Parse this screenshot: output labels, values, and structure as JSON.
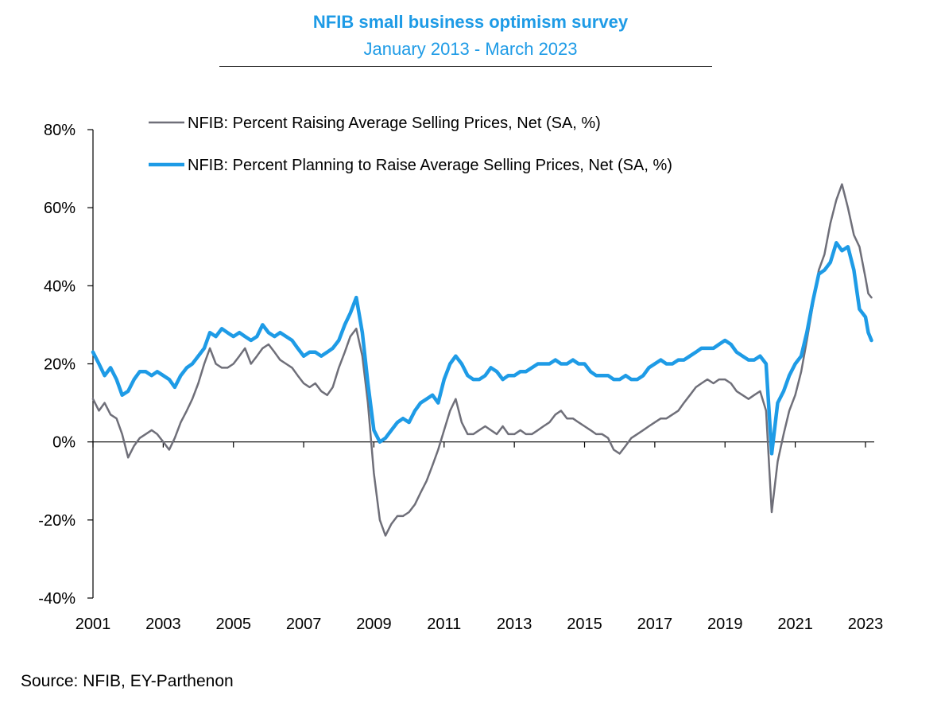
{
  "header": {
    "title": "NFIB small business optimism survey",
    "subtitle": "January 2013 - March 2023"
  },
  "footer": {
    "source": "Source: NFIB, EY-Parthenon"
  },
  "colors": {
    "title": "#1e9be6",
    "series_actual": "#6f6f79",
    "series_planned": "#1e9be6",
    "axis": "#000000"
  },
  "chart_data": {
    "type": "line",
    "title": "NFIB small business optimism survey",
    "subtitle": "January 2013 - March 2023",
    "xlabel": "",
    "ylabel": "",
    "xlim": [
      2001,
      2023.25
    ],
    "ylim": [
      -40,
      80
    ],
    "yticks": [
      -40,
      -20,
      0,
      20,
      40,
      60,
      80
    ],
    "ytick_labels": [
      "-40%",
      "-20%",
      "0%",
      "20%",
      "40%",
      "60%",
      "80%"
    ],
    "xticks": [
      2001,
      2003,
      2005,
      2007,
      2009,
      2011,
      2013,
      2015,
      2017,
      2019,
      2021,
      2023
    ],
    "xtick_labels": [
      "2001",
      "2003",
      "2005",
      "2007",
      "2009",
      "2011",
      "2013",
      "2015",
      "2017",
      "2019",
      "2021",
      "2023"
    ],
    "grid": false,
    "legend": "top-left",
    "series": [
      {
        "name": "NFIB: Percent Raising Average Selling Prices, Net (SA, %)",
        "color": "#6f6f79",
        "points": [
          [
            2001.0,
            11
          ],
          [
            2001.17,
            8
          ],
          [
            2001.33,
            10
          ],
          [
            2001.5,
            7
          ],
          [
            2001.67,
            6
          ],
          [
            2001.83,
            2
          ],
          [
            2002.0,
            -4
          ],
          [
            2002.17,
            -1
          ],
          [
            2002.33,
            1
          ],
          [
            2002.5,
            2
          ],
          [
            2002.67,
            3
          ],
          [
            2002.83,
            2
          ],
          [
            2003.0,
            0
          ],
          [
            2003.17,
            -2
          ],
          [
            2003.33,
            1
          ],
          [
            2003.5,
            5
          ],
          [
            2003.67,
            8
          ],
          [
            2003.83,
            11
          ],
          [
            2004.0,
            15
          ],
          [
            2004.17,
            20
          ],
          [
            2004.33,
            24
          ],
          [
            2004.5,
            20
          ],
          [
            2004.67,
            19
          ],
          [
            2004.83,
            19
          ],
          [
            2005.0,
            20
          ],
          [
            2005.17,
            22
          ],
          [
            2005.33,
            24
          ],
          [
            2005.5,
            20
          ],
          [
            2005.67,
            22
          ],
          [
            2005.83,
            24
          ],
          [
            2006.0,
            25
          ],
          [
            2006.17,
            23
          ],
          [
            2006.33,
            21
          ],
          [
            2006.5,
            20
          ],
          [
            2006.67,
            19
          ],
          [
            2006.83,
            17
          ],
          [
            2007.0,
            15
          ],
          [
            2007.17,
            14
          ],
          [
            2007.33,
            15
          ],
          [
            2007.5,
            13
          ],
          [
            2007.67,
            12
          ],
          [
            2007.83,
            14
          ],
          [
            2008.0,
            19
          ],
          [
            2008.17,
            23
          ],
          [
            2008.33,
            27
          ],
          [
            2008.5,
            29
          ],
          [
            2008.67,
            22
          ],
          [
            2008.83,
            10
          ],
          [
            2009.0,
            -8
          ],
          [
            2009.17,
            -20
          ],
          [
            2009.33,
            -24
          ],
          [
            2009.5,
            -21
          ],
          [
            2009.67,
            -19
          ],
          [
            2009.83,
            -19
          ],
          [
            2010.0,
            -18
          ],
          [
            2010.17,
            -16
          ],
          [
            2010.33,
            -13
          ],
          [
            2010.5,
            -10
          ],
          [
            2010.67,
            -6
          ],
          [
            2010.83,
            -2
          ],
          [
            2011.0,
            3
          ],
          [
            2011.17,
            8
          ],
          [
            2011.33,
            11
          ],
          [
            2011.5,
            5
          ],
          [
            2011.67,
            2
          ],
          [
            2011.83,
            2
          ],
          [
            2012.0,
            3
          ],
          [
            2012.17,
            4
          ],
          [
            2012.33,
            3
          ],
          [
            2012.5,
            2
          ],
          [
            2012.67,
            4
          ],
          [
            2012.83,
            2
          ],
          [
            2013.0,
            2
          ],
          [
            2013.17,
            3
          ],
          [
            2013.33,
            2
          ],
          [
            2013.5,
            2
          ],
          [
            2013.67,
            3
          ],
          [
            2013.83,
            4
          ],
          [
            2014.0,
            5
          ],
          [
            2014.17,
            7
          ],
          [
            2014.33,
            8
          ],
          [
            2014.5,
            6
          ],
          [
            2014.67,
            6
          ],
          [
            2014.83,
            5
          ],
          [
            2015.0,
            4
          ],
          [
            2015.17,
            3
          ],
          [
            2015.33,
            2
          ],
          [
            2015.5,
            2
          ],
          [
            2015.67,
            1
          ],
          [
            2015.83,
            -2
          ],
          [
            2016.0,
            -3
          ],
          [
            2016.17,
            -1
          ],
          [
            2016.33,
            1
          ],
          [
            2016.5,
            2
          ],
          [
            2016.67,
            3
          ],
          [
            2016.83,
            4
          ],
          [
            2017.0,
            5
          ],
          [
            2017.17,
            6
          ],
          [
            2017.33,
            6
          ],
          [
            2017.5,
            7
          ],
          [
            2017.67,
            8
          ],
          [
            2017.83,
            10
          ],
          [
            2018.0,
            12
          ],
          [
            2018.17,
            14
          ],
          [
            2018.33,
            15
          ],
          [
            2018.5,
            16
          ],
          [
            2018.67,
            15
          ],
          [
            2018.83,
            16
          ],
          [
            2019.0,
            16
          ],
          [
            2019.17,
            15
          ],
          [
            2019.33,
            13
          ],
          [
            2019.5,
            12
          ],
          [
            2019.67,
            11
          ],
          [
            2019.83,
            12
          ],
          [
            2020.0,
            13
          ],
          [
            2020.17,
            8
          ],
          [
            2020.33,
            -18
          ],
          [
            2020.5,
            -5
          ],
          [
            2020.67,
            2
          ],
          [
            2020.83,
            8
          ],
          [
            2021.0,
            12
          ],
          [
            2021.17,
            18
          ],
          [
            2021.33,
            26
          ],
          [
            2021.5,
            35
          ],
          [
            2021.67,
            44
          ],
          [
            2021.83,
            48
          ],
          [
            2022.0,
            56
          ],
          [
            2022.17,
            62
          ],
          [
            2022.33,
            66
          ],
          [
            2022.5,
            60
          ],
          [
            2022.67,
            53
          ],
          [
            2022.83,
            50
          ],
          [
            2023.0,
            42
          ],
          [
            2023.08,
            38
          ],
          [
            2023.17,
            37
          ]
        ]
      },
      {
        "name": "NFIB: Percent Planning to Raise Average Selling Prices, Net (SA, %)",
        "color": "#1e9be6",
        "points": [
          [
            2001.0,
            23
          ],
          [
            2001.17,
            20
          ],
          [
            2001.33,
            17
          ],
          [
            2001.5,
            19
          ],
          [
            2001.67,
            16
          ],
          [
            2001.83,
            12
          ],
          [
            2002.0,
            13
          ],
          [
            2002.17,
            16
          ],
          [
            2002.33,
            18
          ],
          [
            2002.5,
            18
          ],
          [
            2002.67,
            17
          ],
          [
            2002.83,
            18
          ],
          [
            2003.0,
            17
          ],
          [
            2003.17,
            16
          ],
          [
            2003.33,
            14
          ],
          [
            2003.5,
            17
          ],
          [
            2003.67,
            19
          ],
          [
            2003.83,
            20
          ],
          [
            2004.0,
            22
          ],
          [
            2004.17,
            24
          ],
          [
            2004.33,
            28
          ],
          [
            2004.5,
            27
          ],
          [
            2004.67,
            29
          ],
          [
            2004.83,
            28
          ],
          [
            2005.0,
            27
          ],
          [
            2005.17,
            28
          ],
          [
            2005.33,
            27
          ],
          [
            2005.5,
            26
          ],
          [
            2005.67,
            27
          ],
          [
            2005.83,
            30
          ],
          [
            2006.0,
            28
          ],
          [
            2006.17,
            27
          ],
          [
            2006.33,
            28
          ],
          [
            2006.5,
            27
          ],
          [
            2006.67,
            26
          ],
          [
            2006.83,
            24
          ],
          [
            2007.0,
            22
          ],
          [
            2007.17,
            23
          ],
          [
            2007.33,
            23
          ],
          [
            2007.5,
            22
          ],
          [
            2007.67,
            23
          ],
          [
            2007.83,
            24
          ],
          [
            2008.0,
            26
          ],
          [
            2008.17,
            30
          ],
          [
            2008.33,
            33
          ],
          [
            2008.5,
            37
          ],
          [
            2008.67,
            28
          ],
          [
            2008.83,
            15
          ],
          [
            2009.0,
            3
          ],
          [
            2009.17,
            0
          ],
          [
            2009.33,
            1
          ],
          [
            2009.5,
            3
          ],
          [
            2009.67,
            5
          ],
          [
            2009.83,
            6
          ],
          [
            2010.0,
            5
          ],
          [
            2010.17,
            8
          ],
          [
            2010.33,
            10
          ],
          [
            2010.5,
            11
          ],
          [
            2010.67,
            12
          ],
          [
            2010.83,
            10
          ],
          [
            2011.0,
            16
          ],
          [
            2011.17,
            20
          ],
          [
            2011.33,
            22
          ],
          [
            2011.5,
            20
          ],
          [
            2011.67,
            17
          ],
          [
            2011.83,
            16
          ],
          [
            2012.0,
            16
          ],
          [
            2012.17,
            17
          ],
          [
            2012.33,
            19
          ],
          [
            2012.5,
            18
          ],
          [
            2012.67,
            16
          ],
          [
            2012.83,
            17
          ],
          [
            2013.0,
            17
          ],
          [
            2013.17,
            18
          ],
          [
            2013.33,
            18
          ],
          [
            2013.5,
            19
          ],
          [
            2013.67,
            20
          ],
          [
            2013.83,
            20
          ],
          [
            2014.0,
            20
          ],
          [
            2014.17,
            21
          ],
          [
            2014.33,
            20
          ],
          [
            2014.5,
            20
          ],
          [
            2014.67,
            21
          ],
          [
            2014.83,
            20
          ],
          [
            2015.0,
            20
          ],
          [
            2015.17,
            18
          ],
          [
            2015.33,
            17
          ],
          [
            2015.5,
            17
          ],
          [
            2015.67,
            17
          ],
          [
            2015.83,
            16
          ],
          [
            2016.0,
            16
          ],
          [
            2016.17,
            17
          ],
          [
            2016.33,
            16
          ],
          [
            2016.5,
            16
          ],
          [
            2016.67,
            17
          ],
          [
            2016.83,
            19
          ],
          [
            2017.0,
            20
          ],
          [
            2017.17,
            21
          ],
          [
            2017.33,
            20
          ],
          [
            2017.5,
            20
          ],
          [
            2017.67,
            21
          ],
          [
            2017.83,
            21
          ],
          [
            2018.0,
            22
          ],
          [
            2018.17,
            23
          ],
          [
            2018.33,
            24
          ],
          [
            2018.5,
            24
          ],
          [
            2018.67,
            24
          ],
          [
            2018.83,
            25
          ],
          [
            2019.0,
            26
          ],
          [
            2019.17,
            25
          ],
          [
            2019.33,
            23
          ],
          [
            2019.5,
            22
          ],
          [
            2019.67,
            21
          ],
          [
            2019.83,
            21
          ],
          [
            2020.0,
            22
          ],
          [
            2020.17,
            20
          ],
          [
            2020.33,
            -3
          ],
          [
            2020.5,
            10
          ],
          [
            2020.67,
            13
          ],
          [
            2020.83,
            17
          ],
          [
            2021.0,
            20
          ],
          [
            2021.17,
            22
          ],
          [
            2021.33,
            28
          ],
          [
            2021.5,
            36
          ],
          [
            2021.67,
            43
          ],
          [
            2021.83,
            44
          ],
          [
            2022.0,
            46
          ],
          [
            2022.17,
            51
          ],
          [
            2022.33,
            49
          ],
          [
            2022.5,
            50
          ],
          [
            2022.67,
            44
          ],
          [
            2022.83,
            34
          ],
          [
            2023.0,
            32
          ],
          [
            2023.08,
            28
          ],
          [
            2023.17,
            26
          ]
        ]
      }
    ]
  }
}
